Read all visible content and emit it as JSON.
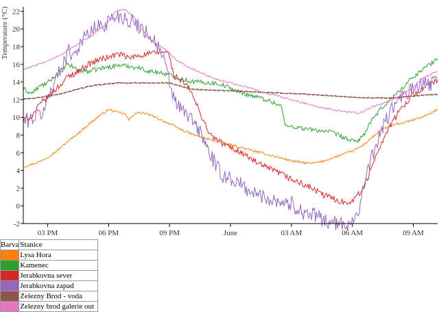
{
  "chart_data": {
    "type": "line",
    "title": "",
    "xlabel": "",
    "ylabel": "Temperature (°C)",
    "ylim": [
      -2,
      22.5
    ],
    "xlim": [
      13.8,
      34.2
    ],
    "grid": false,
    "legend_placement": "bottom-left table",
    "x_ticks": [
      {
        "x": 15,
        "label": "03 PM"
      },
      {
        "x": 18,
        "label": "06 PM"
      },
      {
        "x": 21,
        "label": "09 PM"
      },
      {
        "x": 24,
        "label": "June"
      },
      {
        "x": 27,
        "label": "03 AM"
      },
      {
        "x": 30,
        "label": "06 AM"
      },
      {
        "x": 33,
        "label": "09 AM"
      }
    ],
    "y_ticks": [
      -2,
      0,
      2,
      4,
      6,
      8,
      10,
      12,
      14,
      16,
      18,
      20,
      22
    ],
    "series": [
      {
        "name": "Lysa Hora",
        "color": "#ff7f0e",
        "noise": 0.12,
        "x": [
          13.8,
          14.5,
          15.0,
          15.5,
          16.0,
          16.5,
          17.0,
          17.5,
          18.0,
          18.4,
          18.8,
          19.0,
          19.3,
          19.7,
          20.0,
          20.5,
          21.0,
          21.5,
          22.0,
          22.5,
          23.0,
          23.5,
          24.0,
          24.5,
          25.0,
          25.5,
          26.0,
          26.5,
          27.0,
          27.5,
          28.0,
          28.5,
          29.0,
          29.5,
          30.0,
          30.5,
          31.0,
          31.5,
          32.0,
          32.5,
          33.0,
          33.5,
          34.2
        ],
        "y": [
          4.4,
          4.9,
          5.5,
          6.3,
          7.3,
          8.2,
          9.2,
          10.1,
          10.9,
          10.6,
          10.4,
          9.7,
          10.5,
          10.5,
          10.3,
          9.8,
          9.3,
          8.7,
          8.2,
          7.8,
          7.5,
          7.2,
          6.9,
          6.6,
          6.3,
          6.0,
          5.7,
          5.4,
          5.1,
          4.9,
          4.8,
          5.0,
          5.4,
          5.8,
          6.2,
          6.8,
          7.8,
          8.7,
          9.1,
          9.4,
          9.7,
          10.1,
          10.9
        ]
      },
      {
        "name": "Kamenec",
        "color": "#2ca02c",
        "noise": 0.25,
        "x": [
          13.8,
          14.2,
          14.6,
          15.0,
          15.5,
          16.0,
          16.5,
          17.0,
          17.5,
          18.0,
          18.5,
          19.0,
          19.5,
          20.0,
          20.5,
          21.0,
          21.5,
          22.0,
          22.5,
          23.0,
          23.5,
          24.0,
          24.5,
          25.0,
          25.5,
          26.0,
          26.5,
          26.7,
          27.0,
          27.5,
          28.0,
          28.5,
          29.0,
          29.3,
          29.6,
          30.0,
          30.3,
          30.6,
          31.0,
          31.5,
          32.0,
          32.5,
          33.0,
          33.5,
          34.2
        ],
        "y": [
          13.2,
          12.7,
          13.5,
          13.9,
          15.0,
          16.0,
          15.4,
          15.2,
          15.5,
          15.7,
          15.9,
          15.8,
          15.6,
          15.2,
          15.1,
          14.8,
          14.4,
          14.1,
          14.0,
          13.9,
          13.8,
          13.3,
          12.8,
          12.5,
          12.2,
          11.8,
          11.3,
          9.0,
          9.0,
          8.8,
          8.6,
          8.5,
          8.3,
          8.0,
          7.7,
          7.3,
          7.4,
          8.2,
          9.8,
          11.2,
          12.3,
          13.4,
          14.6,
          15.5,
          16.6
        ]
      },
      {
        "name": "Jerabkovna sever",
        "color": "#d62728",
        "noise": 0.35,
        "x": [
          13.8,
          14.2,
          14.6,
          15.0,
          15.5,
          16.0,
          16.5,
          17.0,
          17.5,
          18.0,
          18.5,
          19.0,
          19.5,
          20.0,
          20.4,
          20.8,
          21.0,
          21.2,
          21.5,
          22.0,
          22.5,
          23.0,
          23.5,
          24.0,
          24.5,
          25.0,
          25.5,
          26.0,
          26.5,
          27.0,
          27.5,
          28.0,
          28.5,
          29.0,
          29.3,
          29.6,
          30.0,
          30.4,
          30.8,
          31.0,
          31.5,
          32.0,
          32.5,
          33.0,
          33.5,
          34.2
        ],
        "y": [
          9.7,
          10.1,
          11.4,
          12.3,
          13.4,
          14.6,
          15.2,
          16.0,
          16.5,
          16.8,
          17.2,
          16.7,
          17.0,
          17.2,
          17.3,
          17.4,
          17.0,
          14.7,
          14.3,
          13.2,
          10.5,
          8.0,
          7.2,
          6.6,
          6.1,
          5.3,
          4.6,
          4.1,
          3.6,
          3.0,
          2.5,
          2.0,
          1.3,
          0.9,
          0.6,
          0.4,
          0.6,
          1.5,
          3.2,
          4.8,
          7.5,
          9.6,
          11.3,
          12.6,
          13.3,
          14.2
        ]
      },
      {
        "name": "Jerabkovna zapad",
        "color": "#9467bd",
        "noise": 0.9,
        "x": [
          13.8,
          14.3,
          14.8,
          15.2,
          15.6,
          16.0,
          16.3,
          16.6,
          17.0,
          17.4,
          17.8,
          18.2,
          18.6,
          19.0,
          19.4,
          19.8,
          20.1,
          20.4,
          20.7,
          21.0,
          21.2,
          21.5,
          22.0,
          22.5,
          23.0,
          23.5,
          24.0,
          24.5,
          25.0,
          25.5,
          26.0,
          26.5,
          27.0,
          27.5,
          28.0,
          28.5,
          29.0,
          29.5,
          30.0,
          30.3,
          30.6,
          31.0,
          31.5,
          32.0,
          32.5,
          33.0,
          33.5,
          34.2
        ],
        "y": [
          9.5,
          10.0,
          10.6,
          13.5,
          15.2,
          17.5,
          17.2,
          18.4,
          19.5,
          20.2,
          20.5,
          21.3,
          21.5,
          21.0,
          20.5,
          19.8,
          19.1,
          18.2,
          16.5,
          14.0,
          12.2,
          11.0,
          10.0,
          8.4,
          5.8,
          3.6,
          3.1,
          2.4,
          1.6,
          1.1,
          0.8,
          0.5,
          0.2,
          -0.6,
          -1.0,
          -1.5,
          -1.9,
          -2.2,
          -1.7,
          -0.5,
          2.5,
          5.8,
          8.9,
          11.2,
          12.4,
          13.2,
          13.7,
          14.0
        ]
      },
      {
        "name": "Zelezny Brod - voda",
        "color": "#8c564b",
        "noise": 0.05,
        "x": [
          13.8,
          14.5,
          15.0,
          15.5,
          16.0,
          16.5,
          17.0,
          17.5,
          18.0,
          18.5,
          19.0,
          20.0,
          21.0,
          21.5,
          22.0,
          23.0,
          24.0,
          25.0,
          26.0,
          27.0,
          28.0,
          29.0,
          30.0,
          30.5,
          31.0,
          31.5,
          32.0,
          32.5,
          33.0,
          33.5,
          34.2
        ],
        "y": [
          12.1,
          12.2,
          12.4,
          12.6,
          12.9,
          13.2,
          13.5,
          13.7,
          13.8,
          13.9,
          13.9,
          13.9,
          13.9,
          13.6,
          13.2,
          13.1,
          13.0,
          12.9,
          12.8,
          12.7,
          12.6,
          12.45,
          12.3,
          12.25,
          12.2,
          12.2,
          12.2,
          12.3,
          12.4,
          12.5,
          12.6
        ]
      },
      {
        "name": "Zelezny brod galerie out",
        "color": "#e377c2",
        "noise": 0.1,
        "x": [
          13.8,
          14.3,
          14.8,
          15.2,
          15.6,
          16.0,
          16.3,
          16.6,
          17.0,
          17.5,
          18.0,
          18.4,
          18.8,
          19.2,
          19.6,
          20.0,
          20.4,
          20.8,
          21.0,
          21.3,
          21.7,
          22.0,
          22.5,
          23.0,
          23.5,
          24.0,
          24.5,
          25.0,
          25.5,
          26.0,
          26.5,
          27.0,
          27.5,
          28.0,
          28.5,
          29.0,
          29.5,
          30.0,
          30.2,
          30.5,
          31.0,
          31.5,
          32.0,
          32.5,
          33.0,
          33.5,
          34.2
        ],
        "y": [
          15.4,
          15.8,
          16.2,
          16.6,
          17.0,
          17.6,
          18.0,
          18.5,
          19.0,
          19.8,
          20.8,
          22.1,
          22.2,
          21.5,
          20.0,
          18.9,
          18.3,
          17.6,
          17.2,
          16.5,
          16.0,
          15.6,
          15.1,
          14.6,
          14.2,
          13.9,
          13.6,
          13.3,
          12.9,
          12.6,
          12.3,
          12.0,
          11.7,
          11.4,
          11.1,
          10.9,
          10.7,
          10.6,
          10.5,
          10.6,
          11.2,
          11.6,
          12.0,
          12.6,
          13.4,
          14.5,
          15.2
        ]
      }
    ]
  },
  "legend": {
    "header_color": "Barva",
    "header_station": "Stanice",
    "rows": [
      {
        "color": "#ff7f0e",
        "label": "Lysa Hora"
      },
      {
        "color": "#2ca02c",
        "label": "Kamenec"
      },
      {
        "color": "#d62728",
        "label": "Jerabkovna sever"
      },
      {
        "color": "#9467bd",
        "label": "Jerabkovna zapad"
      },
      {
        "color": "#8c564b",
        "label": "Zelezny Brod - voda"
      },
      {
        "color": "#e377c2",
        "label": "Zelezny brod galerie out"
      }
    ]
  }
}
